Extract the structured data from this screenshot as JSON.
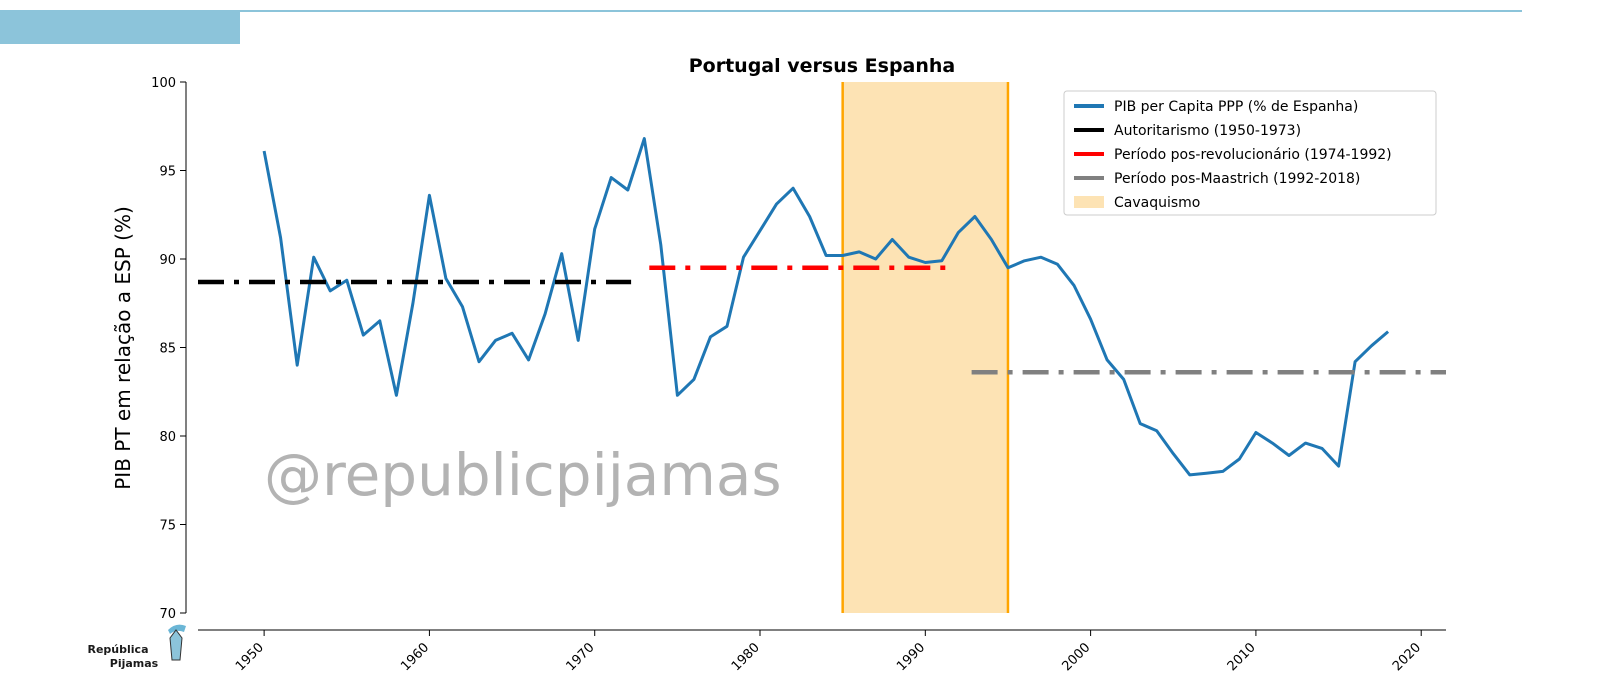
{
  "chart_data": {
    "type": "line",
    "title": "Portugal versus Espanha",
    "ylabel": "PIB PT em relação a ESP (%)",
    "xlabel": "",
    "xlim": [
      1946,
      2021.5
    ],
    "ylim": [
      70,
      100
    ],
    "x_ticks": [
      1950,
      1960,
      1970,
      1980,
      1990,
      2000,
      2010,
      2020
    ],
    "y_ticks": [
      70,
      75,
      80,
      85,
      90,
      95,
      100
    ],
    "grid": false,
    "legend_position": "top-right",
    "series": [
      {
        "name": "PIB per Capita PPP (% de Espanha)",
        "color": "#1f77b4",
        "style": "solid",
        "x": [
          1950,
          1951,
          1952,
          1953,
          1954,
          1955,
          1956,
          1957,
          1958,
          1959,
          1960,
          1961,
          1962,
          1963,
          1964,
          1965,
          1966,
          1967,
          1968,
          1969,
          1970,
          1971,
          1972,
          1973,
          1974,
          1975,
          1976,
          1977,
          1978,
          1979,
          1980,
          1981,
          1982,
          1983,
          1984,
          1985,
          1986,
          1987,
          1988,
          1989,
          1990,
          1991,
          1992,
          1993,
          1994,
          1995,
          1996,
          1997,
          1998,
          1999,
          2000,
          2001,
          2002,
          2003,
          2004,
          2005,
          2006,
          2007,
          2008,
          2009,
          2010,
          2011,
          2012,
          2013,
          2014,
          2015,
          2016,
          2017,
          2018
        ],
        "y": [
          96.1,
          91.2,
          84.0,
          90.1,
          88.2,
          88.8,
          85.7,
          86.5,
          82.3,
          87.5,
          93.6,
          88.9,
          87.3,
          84.2,
          85.4,
          85.8,
          84.3,
          86.9,
          90.3,
          85.4,
          91.7,
          94.6,
          93.9,
          96.8,
          90.8,
          82.3,
          83.2,
          85.6,
          86.2,
          90.1,
          91.6,
          93.1,
          94.0,
          92.4,
          90.2,
          90.2,
          90.4,
          90.0,
          91.1,
          90.1,
          89.8,
          89.9,
          91.5,
          92.4,
          91.1,
          89.5,
          89.9,
          90.1,
          89.7,
          88.5,
          86.6,
          84.3,
          83.2,
          80.7,
          80.3,
          79.0,
          77.8,
          77.9,
          78.0,
          78.7,
          80.2,
          79.6,
          78.9,
          79.6,
          79.3,
          78.3,
          84.2,
          85.1,
          85.9
        ]
      },
      {
        "name": "Autoritarismo (1950-1973)",
        "color": "#000000",
        "style": "dashdot",
        "x": [
          1946,
          1972.2
        ],
        "y": [
          88.7,
          88.7
        ]
      },
      {
        "name": "Período pos-revolucionário (1974-1992)",
        "color": "#ff0000",
        "style": "dashdot",
        "x": [
          1973.3,
          1991.8
        ],
        "y": [
          89.5,
          89.5
        ]
      },
      {
        "name": "Período pos-Maastrich (1992-2018)",
        "color": "#808080",
        "style": "dashdot",
        "x": [
          1992.8,
          2021.5
        ],
        "y": [
          83.6,
          83.6
        ]
      }
    ],
    "shaded_region": {
      "name": "Cavaquismo",
      "x": [
        1985,
        1995
      ],
      "fill": "#fde3b4",
      "edge": "#ffa500"
    },
    "watermark": "@republicpijamas"
  },
  "logo": {
    "line1": "República",
    "line2": "Pijamas"
  }
}
